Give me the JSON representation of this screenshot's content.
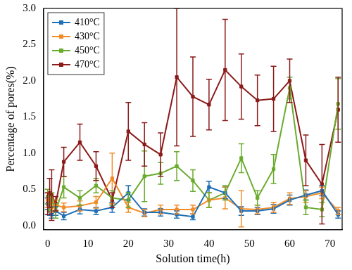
{
  "chart_data": {
    "type": "line",
    "x_label": "Solution time(h)",
    "y_label": "Percentage of pores(%)",
    "x": [
      0,
      0.5,
      1,
      2,
      4,
      8,
      12,
      16,
      20,
      24,
      28,
      32,
      36,
      40,
      44,
      48,
      52,
      56,
      60,
      64,
      68,
      72
    ],
    "xlim": [
      -1,
      73
    ],
    "xticks": [
      0,
      10,
      20,
      30,
      40,
      50,
      60,
      70
    ],
    "ylim": [
      -0.06,
      3.0
    ],
    "yticks": [
      {
        "value": 0,
        "label": "0.0"
      },
      {
        "value": 0.5,
        "label": "0.5"
      },
      {
        "value": 1,
        "label": "1.0"
      },
      {
        "value": 1.5,
        "label": "1.5"
      },
      {
        "value": 2,
        "label": "2.0"
      },
      {
        "value": 2.5,
        "label": "2.5"
      },
      {
        "value": 3,
        "label": "3.0"
      }
    ],
    "grid": false,
    "legend": "upper left",
    "marker": "square",
    "line_style": "solid",
    "series": [
      {
        "name": "410°C",
        "color": "#1f6fb5",
        "values": [
          0.3,
          0.2,
          0.15,
          0.2,
          0.13,
          0.22,
          0.2,
          0.25,
          0.45,
          0.18,
          0.18,
          0.15,
          0.12,
          0.53,
          0.45,
          0.2,
          0.2,
          0.23,
          0.35,
          0.42,
          0.48,
          0.15
        ],
        "errors": [
          0.08,
          0.06,
          0.05,
          0.06,
          0.05,
          0.06,
          0.05,
          0.07,
          0.1,
          0.05,
          0.05,
          0.05,
          0.04,
          0.08,
          0.08,
          0.06,
          0.05,
          0.06,
          0.07,
          0.07,
          0.07,
          0.05
        ]
      },
      {
        "name": "430°C",
        "color": "#f28c28",
        "values": [
          0.35,
          0.3,
          0.25,
          0.28,
          0.25,
          0.27,
          0.32,
          0.65,
          0.25,
          0.17,
          0.22,
          0.22,
          0.22,
          0.35,
          0.38,
          0.23,
          0.22,
          0.25,
          0.37,
          0.4,
          0.45,
          0.2
        ],
        "errors": [
          0.1,
          0.08,
          0.07,
          0.07,
          0.06,
          0.07,
          0.08,
          0.35,
          0.07,
          0.05,
          0.06,
          0.06,
          0.06,
          0.1,
          0.15,
          0.25,
          0.06,
          0.07,
          0.08,
          0.08,
          0.08,
          0.05
        ]
      },
      {
        "name": "450°C",
        "color": "#6aab2e",
        "values": [
          0.4,
          0.3,
          0.35,
          0.2,
          0.53,
          0.38,
          0.55,
          0.38,
          0.35,
          0.68,
          0.72,
          0.82,
          0.62,
          0.35,
          0.45,
          0.93,
          0.38,
          0.78,
          1.9,
          0.25,
          0.22,
          1.68
        ],
        "errors": [
          0.1,
          0.1,
          0.1,
          0.1,
          0.15,
          0.1,
          0.1,
          0.1,
          0.1,
          0.35,
          0.15,
          0.2,
          0.15,
          0.1,
          0.1,
          0.2,
          0.1,
          0.2,
          0.15,
          0.1,
          0.1,
          0.35
        ]
      },
      {
        "name": "470°C",
        "color": "#8b1a1a",
        "values": [
          0.3,
          0.45,
          0.42,
          0.3,
          0.88,
          1.15,
          0.82,
          0.35,
          1.3,
          1.12,
          0.98,
          2.05,
          1.78,
          1.67,
          2.15,
          1.92,
          1.73,
          1.75,
          2.0,
          0.9,
          0.57,
          1.6
        ],
        "errors": [
          0.15,
          0.2,
          0.35,
          0.1,
          0.2,
          0.25,
          0.2,
          0.1,
          0.4,
          0.3,
          0.3,
          0.95,
          0.55,
          0.35,
          0.7,
          0.45,
          0.35,
          0.45,
          0.3,
          0.35,
          0.55,
          0.45
        ]
      }
    ]
  }
}
